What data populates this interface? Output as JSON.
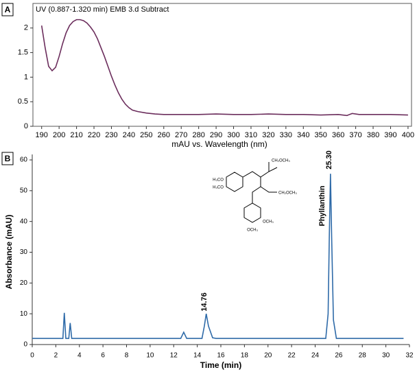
{
  "chart_data": [
    {
      "type": "line",
      "label": "A",
      "title": "UV (0.887-1.320 min) EMB 3.d  Subtract",
      "x_label": "mAU vs. Wavelength (nm)",
      "color": "#6b2d5c",
      "x": [
        190,
        192,
        194,
        196,
        198,
        200,
        202,
        204,
        206,
        208,
        210,
        212,
        214,
        216,
        218,
        220,
        222,
        224,
        226,
        228,
        230,
        232,
        234,
        236,
        238,
        240,
        242,
        245,
        250,
        255,
        260,
        270,
        280,
        290,
        300,
        310,
        320,
        330,
        340,
        350,
        360,
        365,
        368,
        372,
        380,
        390,
        400
      ],
      "values": [
        2.05,
        1.6,
        1.22,
        1.13,
        1.2,
        1.42,
        1.68,
        1.9,
        2.05,
        2.13,
        2.17,
        2.17,
        2.15,
        2.1,
        2.02,
        1.92,
        1.78,
        1.6,
        1.42,
        1.22,
        1.02,
        0.84,
        0.68,
        0.55,
        0.45,
        0.38,
        0.33,
        0.3,
        0.27,
        0.25,
        0.24,
        0.24,
        0.24,
        0.25,
        0.24,
        0.24,
        0.25,
        0.24,
        0.24,
        0.23,
        0.24,
        0.22,
        0.26,
        0.24,
        0.24,
        0.24,
        0.23
      ],
      "xlim": [
        185,
        402
      ],
      "ylim": [
        0,
        2.5
      ],
      "xticks": [
        190,
        200,
        210,
        220,
        230,
        240,
        250,
        260,
        270,
        280,
        290,
        300,
        310,
        320,
        330,
        340,
        350,
        360,
        370,
        380,
        390,
        400
      ],
      "yticks": [
        0,
        0.5,
        1,
        1.5,
        2
      ]
    },
    {
      "type": "line",
      "label": "B",
      "x_label": "Time (min)",
      "y_label": "Absorbance (mAU)",
      "color": "#2e6aa8",
      "x": [
        0,
        2.6,
        2.72,
        2.85,
        3.1,
        3.22,
        3.35,
        12.6,
        12.85,
        13.1,
        14.4,
        14.6,
        14.76,
        14.95,
        15.3,
        15.6,
        24.9,
        25.1,
        25.2,
        25.3,
        25.4,
        25.55,
        25.8,
        31.5
      ],
      "values": [
        2,
        2,
        10.3,
        2,
        2,
        7,
        2,
        2,
        4,
        2,
        2,
        6,
        10,
        6,
        2.2,
        2,
        2,
        10,
        35,
        55.5,
        35,
        8,
        2,
        2
      ],
      "xlim": [
        0,
        32
      ],
      "ylim": [
        0,
        60
      ],
      "xticks": [
        0,
        2,
        4,
        6,
        8,
        10,
        12,
        14,
        16,
        18,
        20,
        22,
        24,
        26,
        28,
        30,
        32
      ],
      "yticks": [
        0,
        10,
        20,
        30,
        40,
        50,
        60
      ],
      "annotations": [
        "14.76",
        "25.30",
        "Phyllanthin"
      ],
      "structure_labels": [
        "H₃CO",
        "H₃CO",
        "CH₂OCH₃",
        "CH₂OCH₃",
        "OCH₃",
        "OCH₃"
      ]
    }
  ]
}
